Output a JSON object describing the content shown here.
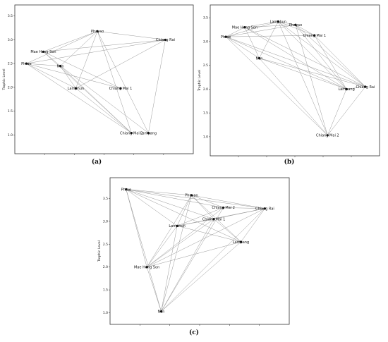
{
  "chart_data": [
    {
      "type": "network",
      "panel_label": "(a)",
      "ylabel": "Trophic Level",
      "ylim": [
        0.9,
        3.6
      ],
      "yticks": [
        "1.0",
        "1.5",
        "2.0",
        "2.5",
        "3.0",
        "3.5"
      ],
      "nodes": [
        {
          "name": "Phayao",
          "x": 0.48,
          "y": 3.18
        },
        {
          "name": "Chiang Rai",
          "x": 0.92,
          "y": 3.0
        },
        {
          "name": "Mae Hong Son",
          "x": 0.13,
          "y": 2.75
        },
        {
          "name": "Phrae",
          "x": 0.02,
          "y": 2.5
        },
        {
          "name": "Nan",
          "x": 0.24,
          "y": 2.45
        },
        {
          "name": "Lamphun",
          "x": 0.34,
          "y": 1.98
        },
        {
          "name": "Chiang Mai 1",
          "x": 0.63,
          "y": 1.98
        },
        {
          "name": "Chiang Mai 2",
          "x": 0.7,
          "y": 1.04
        },
        {
          "name": "Lampang",
          "x": 0.81,
          "y": 1.04
        }
      ],
      "edges": [
        [
          "Phayao",
          "Chiang Rai"
        ],
        [
          "Phayao",
          "Phrae"
        ],
        [
          "Phayao",
          "Nan"
        ],
        [
          "Phayao",
          "Lamphun"
        ],
        [
          "Phayao",
          "Chiang Mai 2"
        ],
        [
          "Phayao",
          "Lampang"
        ],
        [
          "Phayao",
          "Mae Hong Son"
        ],
        [
          "Chiang Rai",
          "Phrae"
        ],
        [
          "Chiang Rai",
          "Mae Hong Son"
        ],
        [
          "Chiang Rai",
          "Lamphun"
        ],
        [
          "Chiang Rai",
          "Lampang"
        ],
        [
          "Mae Hong Son",
          "Nan"
        ],
        [
          "Mae Hong Son",
          "Chiang Mai 2"
        ],
        [
          "Mae Hong Son",
          "Chiang Mai 1"
        ],
        [
          "Phrae",
          "Nan"
        ],
        [
          "Phrae",
          "Lamphun"
        ],
        [
          "Phrae",
          "Chiang Mai 1"
        ],
        [
          "Phrae",
          "Chiang Mai 2"
        ],
        [
          "Nan",
          "Lamphun"
        ],
        [
          "Nan",
          "Chiang Mai 2"
        ],
        [
          "Nan",
          "Lampang"
        ],
        [
          "Lamphun",
          "Chiang Mai 2"
        ]
      ]
    },
    {
      "type": "network",
      "panel_label": "(b)",
      "ylabel": "Trophic Level",
      "ylim": [
        0.85,
        3.65
      ],
      "yticks": [
        "1.0",
        "1.5",
        "2.0",
        "2.5",
        "3.0",
        "3.5"
      ],
      "nodes": [
        {
          "name": "Lamphun",
          "x": 0.38,
          "y": 3.42
        },
        {
          "name": "Phayao",
          "x": 0.5,
          "y": 3.35
        },
        {
          "name": "Mae Hong Son",
          "x": 0.15,
          "y": 3.3
        },
        {
          "name": "Chiang Mai 1",
          "x": 0.63,
          "y": 3.13
        },
        {
          "name": "Phrae",
          "x": 0.02,
          "y": 3.1
        },
        {
          "name": "Nan",
          "x": 0.25,
          "y": 2.65
        },
        {
          "name": "Lampang",
          "x": 0.85,
          "y": 2.0
        },
        {
          "name": "Chiang Rai",
          "x": 0.98,
          "y": 2.05
        },
        {
          "name": "Chiang Mai 2",
          "x": 0.72,
          "y": 1.03
        }
      ],
      "edges": [
        [
          "Phrae",
          "Lamphun"
        ],
        [
          "Phrae",
          "Phayao"
        ],
        [
          "Phrae",
          "Mae Hong Son"
        ],
        [
          "Phrae",
          "Chiang Mai 1"
        ],
        [
          "Phrae",
          "Nan"
        ],
        [
          "Phrae",
          "Lampang"
        ],
        [
          "Phrae",
          "Chiang Rai"
        ],
        [
          "Phrae",
          "Chiang Mai 2"
        ],
        [
          "Mae Hong Son",
          "Lamphun"
        ],
        [
          "Mae Hong Son",
          "Phayao"
        ],
        [
          "Mae Hong Son",
          "Nan"
        ],
        [
          "Mae Hong Son",
          "Chiang Rai"
        ],
        [
          "Mae Hong Son",
          "Lampang"
        ],
        [
          "Lamphun",
          "Phayao"
        ],
        [
          "Lamphun",
          "Nan"
        ],
        [
          "Lamphun",
          "Chiang Mai 1"
        ],
        [
          "Lamphun",
          "Chiang Rai"
        ],
        [
          "Lamphun",
          "Chiang Mai 2"
        ],
        [
          "Lamphun",
          "Lampang"
        ],
        [
          "Phayao",
          "Chiang Mai 1"
        ],
        [
          "Phayao",
          "Chiang Rai"
        ],
        [
          "Phayao",
          "Lampang"
        ],
        [
          "Phayao",
          "Chiang Mai 2"
        ],
        [
          "Chiang Mai 1",
          "Lampang"
        ],
        [
          "Chiang Mai 1",
          "Chiang Rai"
        ],
        [
          "Nan",
          "Lampang"
        ],
        [
          "Nan",
          "Chiang Rai"
        ],
        [
          "Nan",
          "Chiang Mai 2"
        ],
        [
          "Lampang",
          "Chiang Rai"
        ],
        [
          "Chiang Rai",
          "Chiang Mai 2"
        ],
        [
          "Lampang",
          "Chiang Mai 2"
        ]
      ]
    },
    {
      "type": "network",
      "panel_label": "(c)",
      "ylabel": "Trophic Level",
      "ylim": [
        0.9,
        3.8
      ],
      "yticks": [
        "1.0",
        "1.5",
        "2.0",
        "2.5",
        "3.0",
        "3.5"
      ],
      "nodes": [
        {
          "name": "Phrae",
          "x": 0.03,
          "y": 3.7
        },
        {
          "name": "Phayao",
          "x": 0.44,
          "y": 3.57
        },
        {
          "name": "Chiang Mai 2",
          "x": 0.64,
          "y": 3.3
        },
        {
          "name": "Chiang Rai",
          "x": 0.9,
          "y": 3.28
        },
        {
          "name": "Chiang Mai 1",
          "x": 0.58,
          "y": 3.05
        },
        {
          "name": "Lamphun",
          "x": 0.35,
          "y": 2.9
        },
        {
          "name": "Lampang",
          "x": 0.75,
          "y": 2.55
        },
        {
          "name": "Mae Hong Son",
          "x": 0.16,
          "y": 2.0
        },
        {
          "name": "Nan",
          "x": 0.25,
          "y": 1.03
        }
      ],
      "edges": [
        [
          "Phrae",
          "Phayao"
        ],
        [
          "Phrae",
          "Chiang Mai 2"
        ],
        [
          "Phrae",
          "Chiang Rai"
        ],
        [
          "Phrae",
          "Chiang Mai 1"
        ],
        [
          "Phrae",
          "Lamphun"
        ],
        [
          "Phrae",
          "Lampang"
        ],
        [
          "Phrae",
          "Mae Hong Son"
        ],
        [
          "Phrae",
          "Nan"
        ],
        [
          "Phayao",
          "Chiang Mai 2"
        ],
        [
          "Phayao",
          "Chiang Rai"
        ],
        [
          "Phayao",
          "Chiang Mai 1"
        ],
        [
          "Phayao",
          "Lamphun"
        ],
        [
          "Phayao",
          "Lampang"
        ],
        [
          "Phayao",
          "Mae Hong Son"
        ],
        [
          "Phayao",
          "Nan"
        ],
        [
          "Chiang Mai 2",
          "Chiang Rai"
        ],
        [
          "Chiang Mai 2",
          "Lamphun"
        ],
        [
          "Chiang Mai 2",
          "Mae Hong Son"
        ],
        [
          "Chiang Mai 2",
          "Nan"
        ],
        [
          "Chiang Rai",
          "Chiang Mai 1"
        ],
        [
          "Chiang Rai",
          "Lamphun"
        ],
        [
          "Chiang Rai",
          "Lampang"
        ],
        [
          "Chiang Rai",
          "Mae Hong Son"
        ],
        [
          "Chiang Rai",
          "Nan"
        ],
        [
          "Chiang Mai 1",
          "Lamphun"
        ],
        [
          "Chiang Mai 1",
          "Mae Hong Son"
        ],
        [
          "Chiang Mai 1",
          "Nan"
        ],
        [
          "Chiang Mai 1",
          "Lampang"
        ],
        [
          "Lamphun",
          "Lampang"
        ],
        [
          "Lamphun",
          "Mae Hong Son"
        ],
        [
          "Lamphun",
          "Nan"
        ],
        [
          "Lampang",
          "Mae Hong Son"
        ],
        [
          "Lampang",
          "Nan"
        ],
        [
          "Mae Hong Son",
          "Nan"
        ]
      ]
    }
  ]
}
